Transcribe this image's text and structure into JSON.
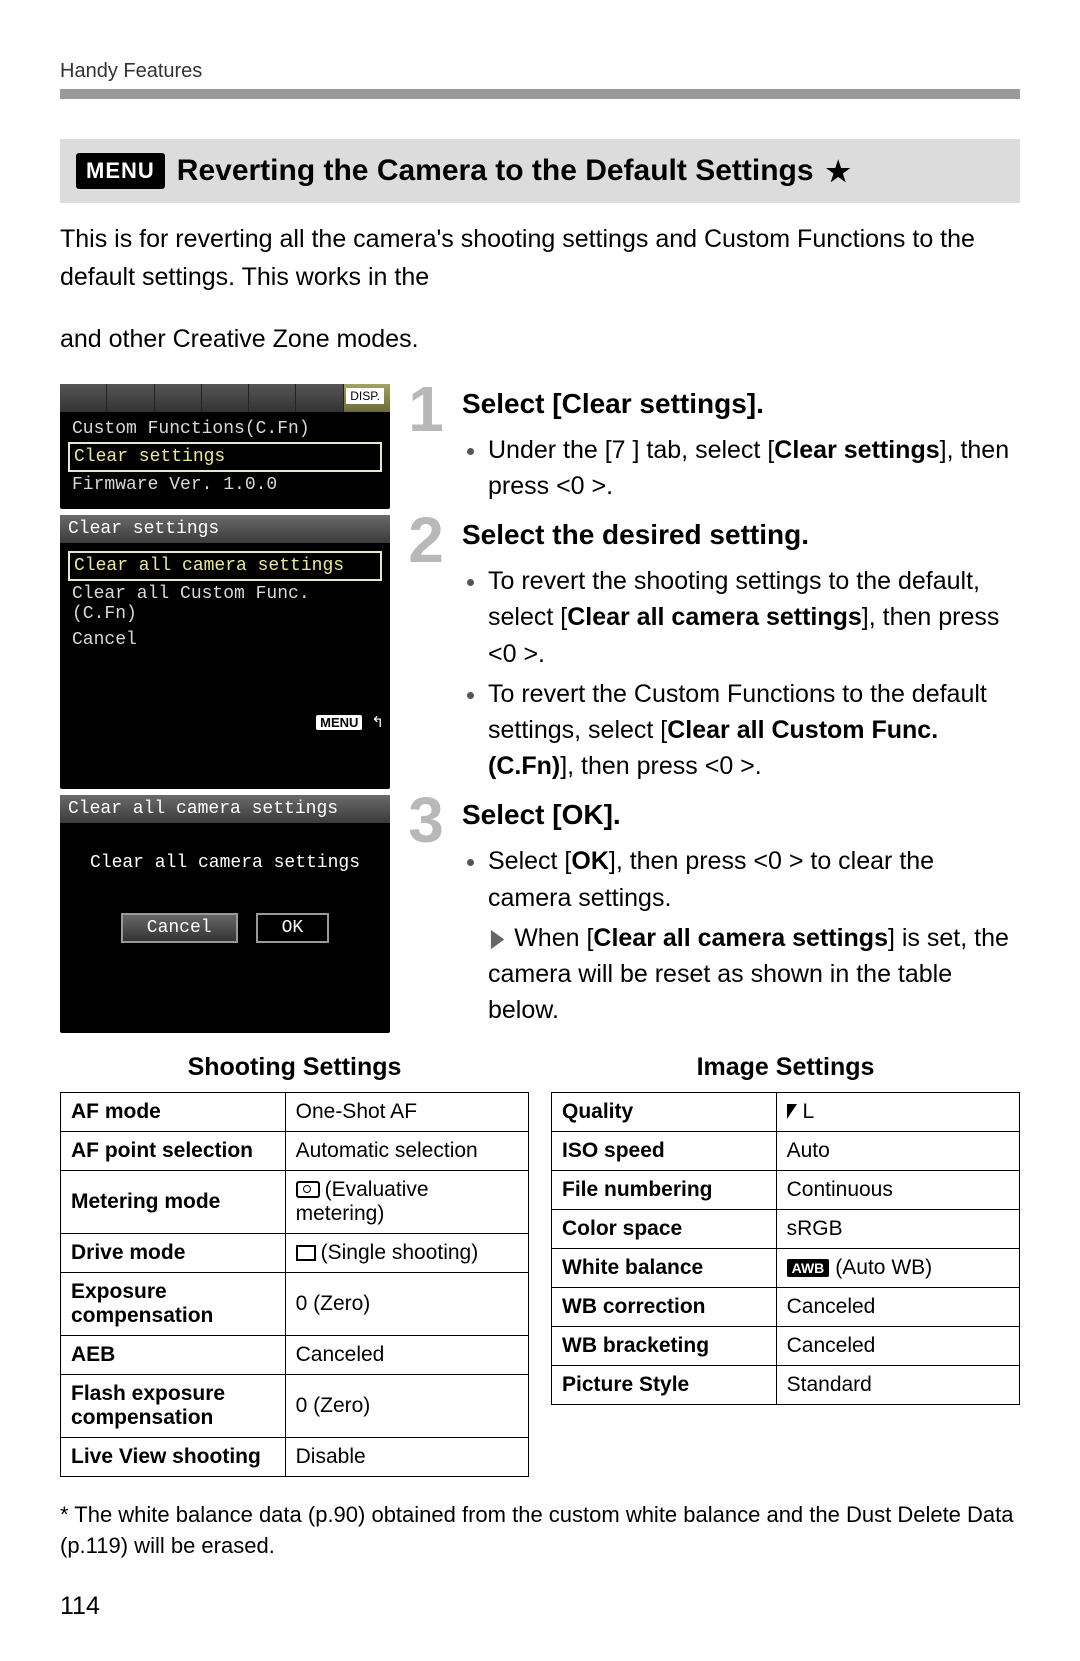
{
  "header": {
    "breadcrumb": "Handy Features"
  },
  "section": {
    "menu_badge": "MENU",
    "title": "Reverting the Camera to the Default Settings",
    "star": "★"
  },
  "intro": "This is for reverting all the camera's shooting settings and Custom Functions to the default settings. This works in the <P> and other Creative Zone modes.",
  "lcd1": {
    "disp_badge": "DISP.",
    "items": [
      "Custom Functions(C.Fn)",
      "Clear settings",
      "Firmware Ver. 1.0.0"
    ],
    "selected_index": 1
  },
  "lcd2": {
    "title": "Clear settings",
    "items": [
      "Clear all camera settings",
      "Clear all Custom Func. (C.Fn)",
      "Cancel"
    ],
    "selected_index": 0,
    "footer_badge": "MENU",
    "footer_icon": "↰"
  },
  "lcd3": {
    "title": "Clear all camera settings",
    "message": "Clear all camera settings",
    "cancel": "Cancel",
    "ok": "OK"
  },
  "steps": [
    {
      "num": "1",
      "heading": "Select [Clear settings].",
      "bullets": [
        {
          "type": "disc",
          "html": "Under the [7  ] tab, select [<b>Clear settings</b>], then press <0  >."
        }
      ]
    },
    {
      "num": "2",
      "heading": "Select the desired setting.",
      "bullets": [
        {
          "type": "disc",
          "html": "To revert the shooting settings to the default, select [<b>Clear all camera settings</b>], then press <0  >."
        },
        {
          "type": "disc",
          "html": "To revert the Custom Functions to the default settings, select [<b>Clear all Custom Func. (C.Fn)</b>], then press <0  >."
        }
      ]
    },
    {
      "num": "3",
      "heading": "Select [OK].",
      "bullets": [
        {
          "type": "disc",
          "html": "Select [<b>OK</b>], then press <0  > to clear the camera settings."
        },
        {
          "type": "tri",
          "html": "When [<b>Clear all camera settings</b>] is set, the camera will be reset as shown in the table below."
        }
      ]
    }
  ],
  "tables": {
    "left": {
      "title": "Shooting Settings",
      "rows": [
        [
          "AF mode",
          "One-Shot AF"
        ],
        [
          "AF point selection",
          "Automatic selection"
        ],
        [
          "Metering mode",
          {
            "icon": "eval",
            "text": "(Evaluative metering)"
          }
        ],
        [
          "Drive mode",
          {
            "icon": "box",
            "text": "(Single shooting)"
          }
        ],
        [
          "Exposure compensation",
          "0 (Zero)"
        ],
        [
          "AEB",
          "Canceled"
        ],
        [
          "Flash exposure compensation",
          "0 (Zero)"
        ],
        [
          "Live View shooting",
          "Disable"
        ]
      ]
    },
    "right": {
      "title": "Image Settings",
      "rows": [
        [
          "Quality",
          {
            "icon": "qual",
            "text": "L"
          }
        ],
        [
          "ISO speed",
          "Auto"
        ],
        [
          "File numbering",
          "Continuous"
        ],
        [
          "Color space",
          "sRGB"
        ],
        [
          "White balance",
          {
            "icon": "awb",
            "text": "(Auto WB)"
          }
        ],
        [
          "WB correction",
          "Canceled"
        ],
        [
          "WB bracketing",
          "Canceled"
        ],
        [
          "Picture Style",
          "Standard"
        ]
      ]
    }
  },
  "footnote": "* The white balance data (p.90) obtained from the custom white balance and the Dust Delete Data (p.119) will be erased.",
  "pagenum": "114"
}
